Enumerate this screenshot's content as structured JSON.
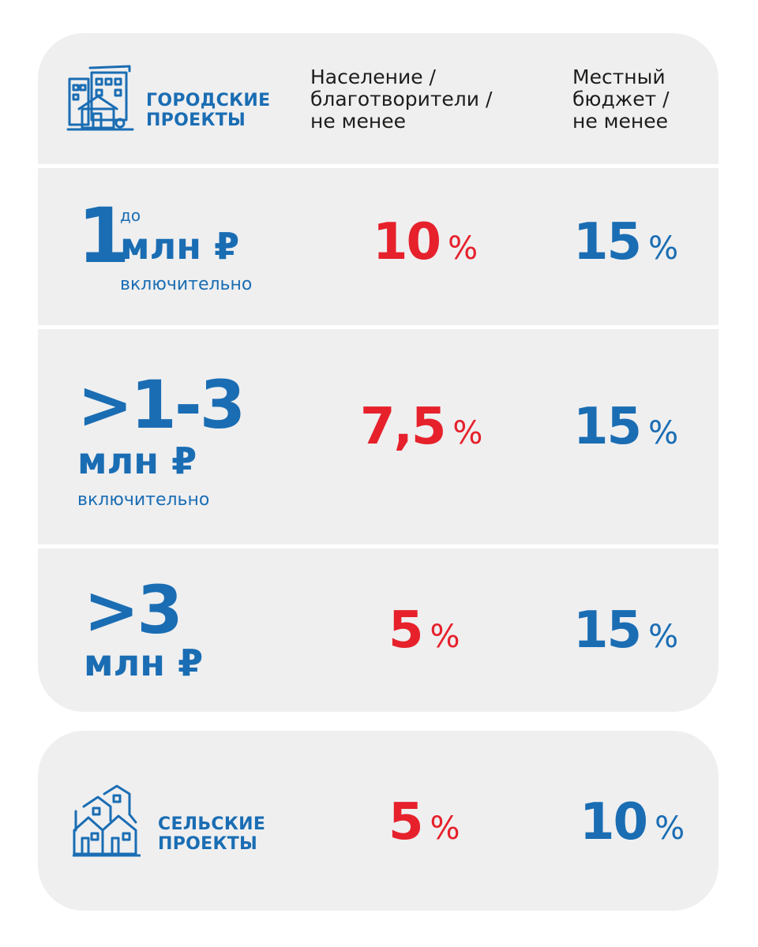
{
  "urban": {
    "label_line1": "ГОРОДСКИЕ",
    "label_line2": "ПРОЕКТЫ",
    "icon": "city-buildings-icon",
    "column_population": [
      "Население /",
      "благотворители /",
      "не менее"
    ],
    "column_budget": [
      "Местный",
      "бюджет /",
      "не менее"
    ],
    "rows": [
      {
        "amount_big": "1",
        "amount_prefix": "до",
        "amount_unit": "млн ₽",
        "amount_note": "включительно",
        "population_pct": "10",
        "budget_pct": "15"
      },
      {
        "amount_big": ">1-3",
        "amount_unit": "млн ₽",
        "amount_note": "включительно",
        "population_pct": "7,5",
        "budget_pct": "15"
      },
      {
        "amount_big": ">3",
        "amount_unit": "млн ₽",
        "population_pct": "5",
        "budget_pct": "15"
      }
    ]
  },
  "rural": {
    "label_line1": "СЕЛЬСКИЕ",
    "label_line2": "ПРОЕКТЫ",
    "icon": "village-houses-icon",
    "population_pct": "5",
    "budget_pct": "10"
  },
  "percent_sign": "%",
  "colors": {
    "blue": "#1a6db3",
    "red": "#e6212b",
    "panel": "#efeff0",
    "text": "#1d1d1b"
  }
}
